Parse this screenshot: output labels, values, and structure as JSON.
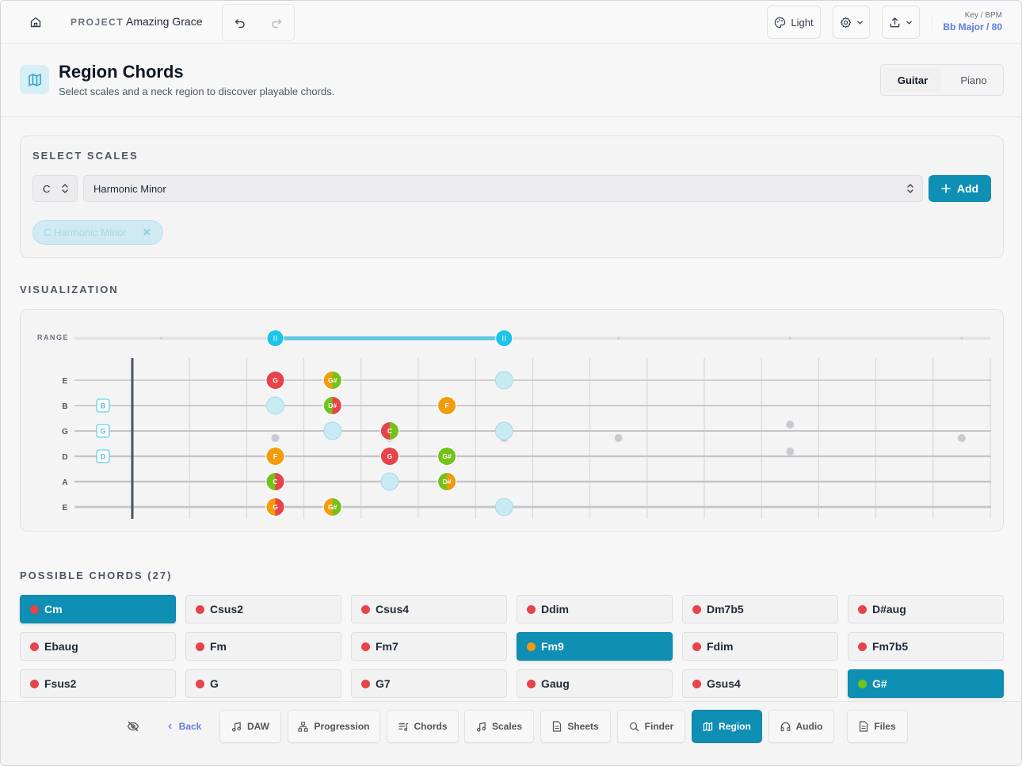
{
  "topbar": {
    "project_label": "PROJECT",
    "project_name": "Amazing Grace",
    "theme_label": "Light",
    "key_bpm_label": "Key / BPM",
    "key_bpm_value": "Bb Major / 80",
    "icons": [
      "home-icon",
      "undo-icon",
      "redo-icon",
      "palette-icon",
      "gear-icon",
      "chevron-down-icon",
      "export-icon"
    ]
  },
  "header": {
    "title": "Region Chords",
    "subtitle": "Select scales and a neck region to discover playable chords.",
    "instrument_tabs": [
      "Guitar",
      "Piano"
    ],
    "active_instrument": "Guitar"
  },
  "select_scales": {
    "label": "SELECT SCALES",
    "root_value": "C",
    "scale_value": "Harmonic Minor",
    "add_label": "Add",
    "chips": [
      {
        "label": "C Harmonic Minor"
      }
    ]
  },
  "visualization": {
    "label": "VISUALIZATION",
    "range_label": "RANGE",
    "range_selection_frets": [
      3,
      7
    ],
    "strings": [
      "E",
      "B",
      "G",
      "D",
      "A",
      "E"
    ],
    "open_string_markers": [
      {
        "string": 1,
        "label": "B"
      },
      {
        "string": 2,
        "label": "G"
      },
      {
        "string": 3,
        "label": "D"
      }
    ],
    "notes": [
      {
        "string": 0,
        "fret": 3,
        "label": "G",
        "color": "#e8424a"
      },
      {
        "string": 0,
        "fret": 4,
        "label": "G#",
        "color": "#f29b0c",
        "color2": "#73c21a"
      },
      {
        "string": 1,
        "fret": 4,
        "label": "D#",
        "color": "#73c21a",
        "color2": "#e8424a"
      },
      {
        "string": 1,
        "fret": 6,
        "label": "F",
        "color": "#f29b0c"
      },
      {
        "string": 2,
        "fret": 5,
        "label": "C",
        "color": "#e8424a",
        "color2": "#73c21a"
      },
      {
        "string": 3,
        "fret": 3,
        "label": "F",
        "color": "#f29b0c"
      },
      {
        "string": 3,
        "fret": 5,
        "label": "G",
        "color": "#e8424a"
      },
      {
        "string": 3,
        "fret": 6,
        "label": "G#",
        "color": "#73c21a"
      },
      {
        "string": 4,
        "fret": 3,
        "label": "C",
        "color": "#73c21a",
        "color2": "#e8424a"
      },
      {
        "string": 4,
        "fret": 6,
        "label": "D#",
        "color": "#73c21a",
        "color2": "#f29b0c"
      },
      {
        "string": 5,
        "fret": 3,
        "label": "G",
        "color": "#f29b0c",
        "color2": "#e8424a"
      },
      {
        "string": 5,
        "fret": 4,
        "label": "G#",
        "color": "#f29b0c",
        "color2": "#73c21a"
      }
    ],
    "ghost_notes": [
      {
        "string": 0,
        "fret": 7
      },
      {
        "string": 1,
        "fret": 3
      },
      {
        "string": 2,
        "fret": 4
      },
      {
        "string": 2,
        "fret": 7
      },
      {
        "string": 4,
        "fret": 5
      },
      {
        "string": 5,
        "fret": 7
      }
    ],
    "inlays": [
      3,
      5,
      7,
      9,
      15
    ],
    "double_inlays": [
      12
    ]
  },
  "chords": {
    "label": "POSSIBLE CHORDS (27)",
    "items": [
      {
        "name": "Cm",
        "dot": "#e8424a",
        "selected": true
      },
      {
        "name": "Csus2",
        "dot": "#e8424a",
        "selected": false
      },
      {
        "name": "Csus4",
        "dot": "#e8424a",
        "selected": false
      },
      {
        "name": "Ddim",
        "dot": "#e8424a",
        "selected": false
      },
      {
        "name": "Dm7b5",
        "dot": "#e8424a",
        "selected": false
      },
      {
        "name": "D#aug",
        "dot": "#e8424a",
        "selected": false
      },
      {
        "name": "Ebaug",
        "dot": "#e8424a",
        "selected": false
      },
      {
        "name": "Fm",
        "dot": "#e8424a",
        "selected": false
      },
      {
        "name": "Fm7",
        "dot": "#e8424a",
        "selected": false
      },
      {
        "name": "Fm9",
        "dot": "#f29b0c",
        "selected": true
      },
      {
        "name": "Fdim",
        "dot": "#e8424a",
        "selected": false
      },
      {
        "name": "Fm7b5",
        "dot": "#e8424a",
        "selected": false
      },
      {
        "name": "Fsus2",
        "dot": "#e8424a",
        "selected": false
      },
      {
        "name": "G",
        "dot": "#e8424a",
        "selected": false
      },
      {
        "name": "G7",
        "dot": "#e8424a",
        "selected": false
      },
      {
        "name": "Gaug",
        "dot": "#e8424a",
        "selected": false
      },
      {
        "name": "Gsus4",
        "dot": "#e8424a",
        "selected": false
      },
      {
        "name": "G#",
        "dot": "#73c21a",
        "selected": true
      }
    ]
  },
  "bottom_nav": {
    "items": [
      {
        "id": "hide",
        "label": "",
        "icon": "eye-off-icon"
      },
      {
        "id": "back",
        "label": "Back",
        "icon": "chevron-left-icon"
      },
      {
        "id": "daw",
        "label": "DAW",
        "icon": "music-note-icon"
      },
      {
        "id": "progression",
        "label": "Progression",
        "icon": "hierarchy-icon"
      },
      {
        "id": "chords",
        "label": "Chords",
        "icon": "list-music-icon"
      },
      {
        "id": "scales",
        "label": "Scales",
        "icon": "music-note-icon"
      },
      {
        "id": "sheets",
        "label": "Sheets",
        "icon": "document-icon"
      },
      {
        "id": "finder",
        "label": "Finder",
        "icon": "search-icon"
      },
      {
        "id": "region",
        "label": "Region",
        "icon": "map-icon",
        "active": true
      },
      {
        "id": "audio",
        "label": "Audio",
        "icon": "headphones-icon"
      },
      {
        "id": "files",
        "label": "Files",
        "icon": "document-icon"
      }
    ]
  },
  "colors": {
    "accent": "#0e8fb3",
    "range_handle": "#1cc3ea",
    "note_red": "#e8424a",
    "note_orange": "#f29b0c",
    "note_green": "#73c21a",
    "key_text": "#5b7be0"
  }
}
